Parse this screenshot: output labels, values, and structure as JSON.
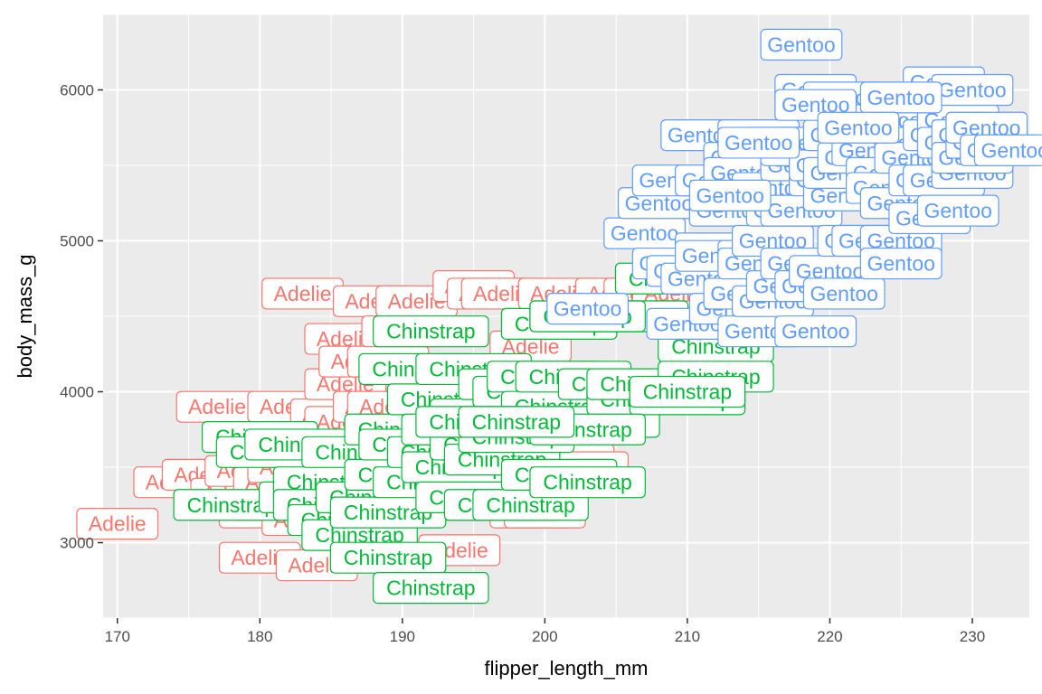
{
  "chart_data": {
    "type": "scatter",
    "title": "",
    "xlabel": "flipper_length_mm",
    "ylabel": "body_mass_g",
    "xlim": [
      169,
      234
    ],
    "ylim": [
      2500,
      6500
    ],
    "x_ticks": [
      170,
      180,
      190,
      200,
      210,
      220,
      230
    ],
    "y_ticks": [
      3000,
      4000,
      5000,
      6000
    ],
    "grid": true,
    "legend": "none",
    "colors": {
      "Adelie": "#F8766D",
      "Chinstrap": "#00BA38",
      "Gentoo": "#619CFF"
    },
    "series": [
      {
        "category": "Adelie",
        "points": [
          [
            170,
            3125
          ],
          [
            174,
            3400
          ],
          [
            176,
            3450
          ],
          [
            177,
            3900
          ],
          [
            178,
            3325
          ],
          [
            179,
            3475
          ],
          [
            180,
            2900
          ],
          [
            180,
            3200
          ],
          [
            181,
            3250
          ],
          [
            181,
            3400
          ],
          [
            182,
            3500
          ],
          [
            182,
            3900
          ],
          [
            183,
            3600
          ],
          [
            183,
            3150
          ],
          [
            183,
            4650
          ],
          [
            184,
            3700
          ],
          [
            184,
            2850
          ],
          [
            185,
            3150
          ],
          [
            185,
            3850
          ],
          [
            185,
            3500
          ],
          [
            186,
            3800
          ],
          [
            186,
            4050
          ],
          [
            186,
            4350
          ],
          [
            187,
            3300
          ],
          [
            187,
            4200
          ],
          [
            187,
            3550
          ],
          [
            188,
            3900
          ],
          [
            188,
            3200
          ],
          [
            188,
            4600
          ],
          [
            189,
            3900
          ],
          [
            189,
            3500
          ],
          [
            189,
            4200
          ],
          [
            190,
            3750
          ],
          [
            190,
            3650
          ],
          [
            190,
            4400
          ],
          [
            191,
            3700
          ],
          [
            191,
            3450
          ],
          [
            191,
            4600
          ],
          [
            192,
            3900
          ],
          [
            193,
            3550
          ],
          [
            193,
            3950
          ],
          [
            194,
            3250
          ],
          [
            194,
            2950
          ],
          [
            195,
            4700
          ],
          [
            195,
            3500
          ],
          [
            196,
            3400
          ],
          [
            196,
            4650
          ],
          [
            197,
            3900
          ],
          [
            197,
            4650
          ],
          [
            198,
            3650
          ],
          [
            199,
            3200
          ],
          [
            199,
            4300
          ],
          [
            200,
            3200
          ],
          [
            201,
            4650
          ],
          [
            202,
            3550
          ],
          [
            203,
            3500
          ],
          [
            205,
            4650
          ],
          [
            207,
            4650
          ],
          [
            209,
            4650
          ],
          [
            210,
            4500
          ]
        ]
      },
      {
        "category": "Chinstrap",
        "points": [
          [
            178,
            3250
          ],
          [
            180,
            3700
          ],
          [
            181,
            3600
          ],
          [
            183,
            3650
          ],
          [
            184,
            3300
          ],
          [
            185,
            3400
          ],
          [
            185,
            3250
          ],
          [
            186,
            3150
          ],
          [
            187,
            3600
          ],
          [
            187,
            3050
          ],
          [
            188,
            3300
          ],
          [
            189,
            3200
          ],
          [
            189,
            2900
          ],
          [
            190,
            3450
          ],
          [
            190,
            3750
          ],
          [
            191,
            3650
          ],
          [
            191,
            4150
          ],
          [
            192,
            4400
          ],
          [
            192,
            3400
          ],
          [
            193,
            3600
          ],
          [
            193,
            3950
          ],
          [
            194,
            3500
          ],
          [
            194,
            3750
          ],
          [
            195,
            4150
          ],
          [
            195,
            3300
          ],
          [
            196,
            3650
          ],
          [
            196,
            3850
          ],
          [
            197,
            3550
          ],
          [
            197,
            3250
          ],
          [
            198,
            3700
          ],
          [
            198,
            4050
          ],
          [
            199,
            3250
          ],
          [
            199,
            4000
          ],
          [
            200,
            4100
          ],
          [
            201,
            3900
          ],
          [
            201,
            3450
          ],
          [
            201,
            4450
          ],
          [
            202,
            4100
          ],
          [
            203,
            3400
          ],
          [
            203,
            4500
          ],
          [
            204,
            3800
          ],
          [
            205,
            4050
          ],
          [
            206,
            4500
          ],
          [
            207,
            3950
          ],
          [
            207,
            4050
          ],
          [
            209,
            4750
          ],
          [
            210,
            3950
          ],
          [
            212,
            4300
          ],
          [
            212,
            4100
          ],
          [
            210,
            4000
          ],
          [
            203,
            3750
          ],
          [
            192,
            2700
          ],
          [
            195,
            3800
          ],
          [
            198,
            3800
          ],
          [
            203,
            4500
          ]
        ]
      },
      {
        "category": "Gentoo",
        "points": [
          [
            203,
            4550
          ],
          [
            207,
            5050
          ],
          [
            208,
            5250
          ],
          [
            209,
            5400
          ],
          [
            209,
            4850
          ],
          [
            210,
            4450
          ],
          [
            210,
            4800
          ],
          [
            211,
            4750
          ],
          [
            211,
            5700
          ],
          [
            212,
            4950
          ],
          [
            212,
            5400
          ],
          [
            212,
            4900
          ],
          [
            213,
            4550
          ],
          [
            213,
            5200
          ],
          [
            214,
            4650
          ],
          [
            214,
            5550
          ],
          [
            214,
            5450
          ],
          [
            215,
            5700
          ],
          [
            215,
            4900
          ],
          [
            215,
            4850
          ],
          [
            215,
            4400
          ],
          [
            216,
            5000
          ],
          [
            216,
            5350
          ],
          [
            216,
            4600
          ],
          [
            217,
            5650
          ],
          [
            217,
            5200
          ],
          [
            217,
            4700
          ],
          [
            218,
            5500
          ],
          [
            218,
            5600
          ],
          [
            218,
            5200
          ],
          [
            218,
            4850
          ],
          [
            219,
            6000
          ],
          [
            219,
            5650
          ],
          [
            219,
            4400
          ],
          [
            219,
            4700
          ],
          [
            220,
            5400
          ],
          [
            220,
            5500
          ],
          [
            220,
            4800
          ],
          [
            221,
            5300
          ],
          [
            221,
            5950
          ],
          [
            221,
            5700
          ],
          [
            221,
            4650
          ],
          [
            221,
            5450
          ],
          [
            222,
            5550
          ],
          [
            222,
            5800
          ],
          [
            222,
            5000
          ],
          [
            223,
            5600
          ],
          [
            223,
            5000
          ],
          [
            224,
            5450
          ],
          [
            224,
            5800
          ],
          [
            224,
            5350
          ],
          [
            225,
            5000
          ],
          [
            225,
            5250
          ],
          [
            225,
            4850
          ],
          [
            226,
            5650
          ],
          [
            226,
            5550
          ],
          [
            227,
            5150
          ],
          [
            227,
            5400
          ],
          [
            228,
            6050
          ],
          [
            228,
            5400
          ],
          [
            228,
            5700
          ],
          [
            229,
            5800
          ],
          [
            229,
            5200
          ],
          [
            229,
            5650
          ],
          [
            230,
            5700
          ],
          [
            230,
            5450
          ],
          [
            230,
            6000
          ],
          [
            230,
            5550
          ],
          [
            231,
            5650
          ],
          [
            231,
            5750
          ],
          [
            232,
            5600
          ],
          [
            233,
            5600
          ],
          [
            218,
            6300
          ],
          [
            219,
            5900
          ],
          [
            225,
            5950
          ],
          [
            222,
            5750
          ],
          [
            215,
            5650
          ],
          [
            213,
            5300
          ]
        ]
      }
    ]
  }
}
